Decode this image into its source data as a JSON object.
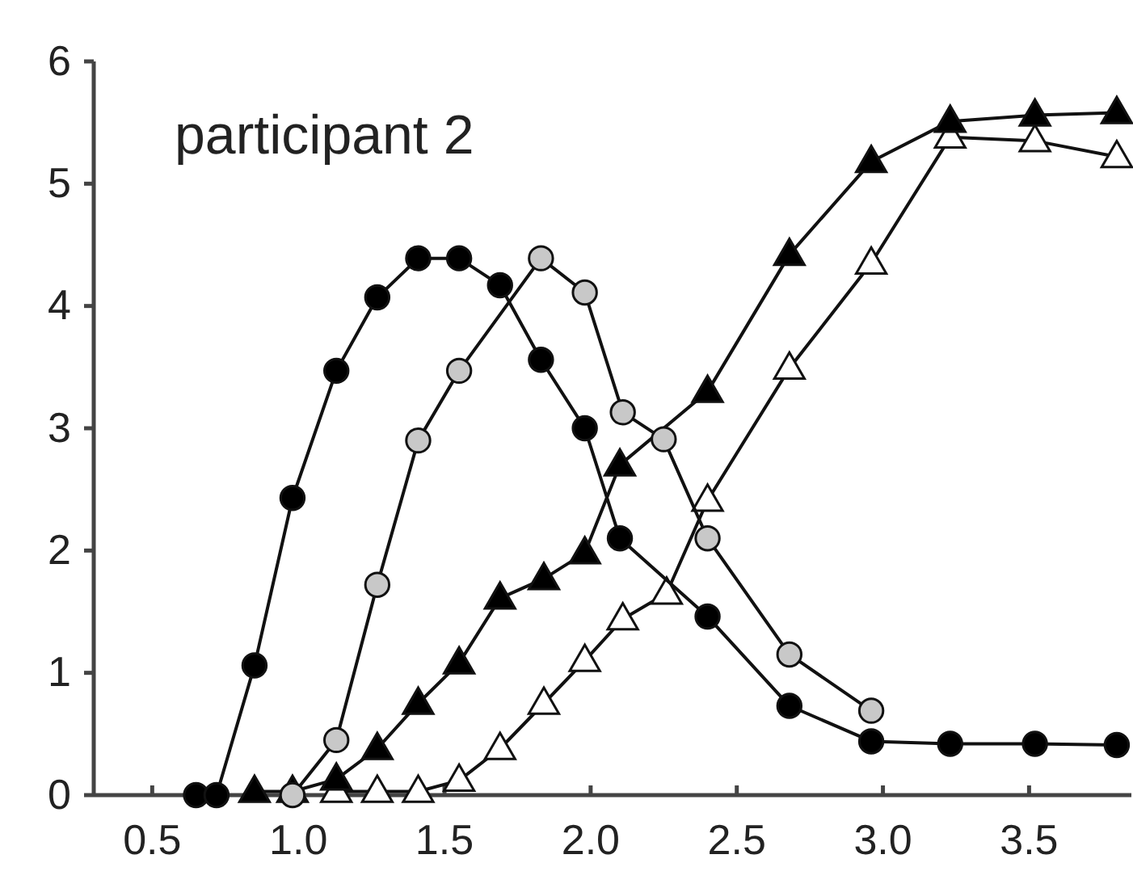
{
  "chart_data": {
    "type": "line",
    "annotations": [
      "participant 2"
    ],
    "xlim": [
      0.3,
      3.85
    ],
    "ylim": [
      0,
      6
    ],
    "xticks": [
      0.5,
      {
        "value": 1,
        "label": "1.0"
      },
      1.5,
      {
        "value": 2,
        "label": "2.0"
      },
      2.5,
      {
        "value": 3,
        "label": "3.0"
      },
      3.5
    ],
    "yticks": [
      0,
      1,
      2,
      3,
      4,
      5,
      6
    ],
    "series": [
      {
        "color": "#000000",
        "marker": "circle",
        "x": [
          0.65,
          0.72,
          0.85,
          0.98,
          1.13,
          1.27,
          1.41,
          1.55,
          1.69,
          1.83,
          1.98,
          2.1,
          2.4,
          2.68,
          2.96,
          3.23,
          3.52,
          3.8
        ],
        "values": [
          0,
          0,
          1.06,
          2.43,
          3.47,
          4.07,
          4.39,
          4.39,
          4.17,
          3.56,
          3.0,
          2.1,
          1.46,
          0.73,
          0.44,
          0.42,
          0.42,
          0.41
        ]
      },
      {
        "color": "#c8c8c8",
        "marker": "circle",
        "x": [
          0.98,
          1.13,
          1.27,
          1.41,
          1.55,
          1.83,
          1.98,
          2.11,
          2.25,
          2.4,
          2.68,
          2.96
        ],
        "values": [
          0,
          0.45,
          1.72,
          2.9,
          3.47,
          4.39,
          4.11,
          3.13,
          2.91,
          2.1,
          1.15,
          0.69
        ]
      },
      {
        "color": "#000000",
        "marker": "triangle",
        "x": [
          0.85,
          0.98,
          1.13,
          1.27,
          1.41,
          1.55,
          1.69,
          1.84,
          1.98,
          2.1,
          2.4,
          2.68,
          2.96,
          3.23,
          3.52,
          3.8
        ],
        "values": [
          0.03,
          0.03,
          0.13,
          0.38,
          0.75,
          1.08,
          1.61,
          1.77,
          1.98,
          2.7,
          3.3,
          4.42,
          5.18,
          5.51,
          5.56,
          5.58
        ]
      },
      {
        "color": "#ffffff",
        "marker": "triangle",
        "x": [
          1.13,
          1.27,
          1.41,
          1.55,
          1.69,
          1.84,
          1.98,
          2.11,
          2.26,
          2.4,
          2.68,
          2.96,
          3.23,
          3.52,
          3.8
        ],
        "values": [
          0.03,
          0.03,
          0.03,
          0.12,
          0.38,
          0.75,
          1.1,
          1.44,
          1.65,
          2.41,
          3.49,
          4.35,
          5.38,
          5.35,
          5.22
        ]
      }
    ]
  }
}
